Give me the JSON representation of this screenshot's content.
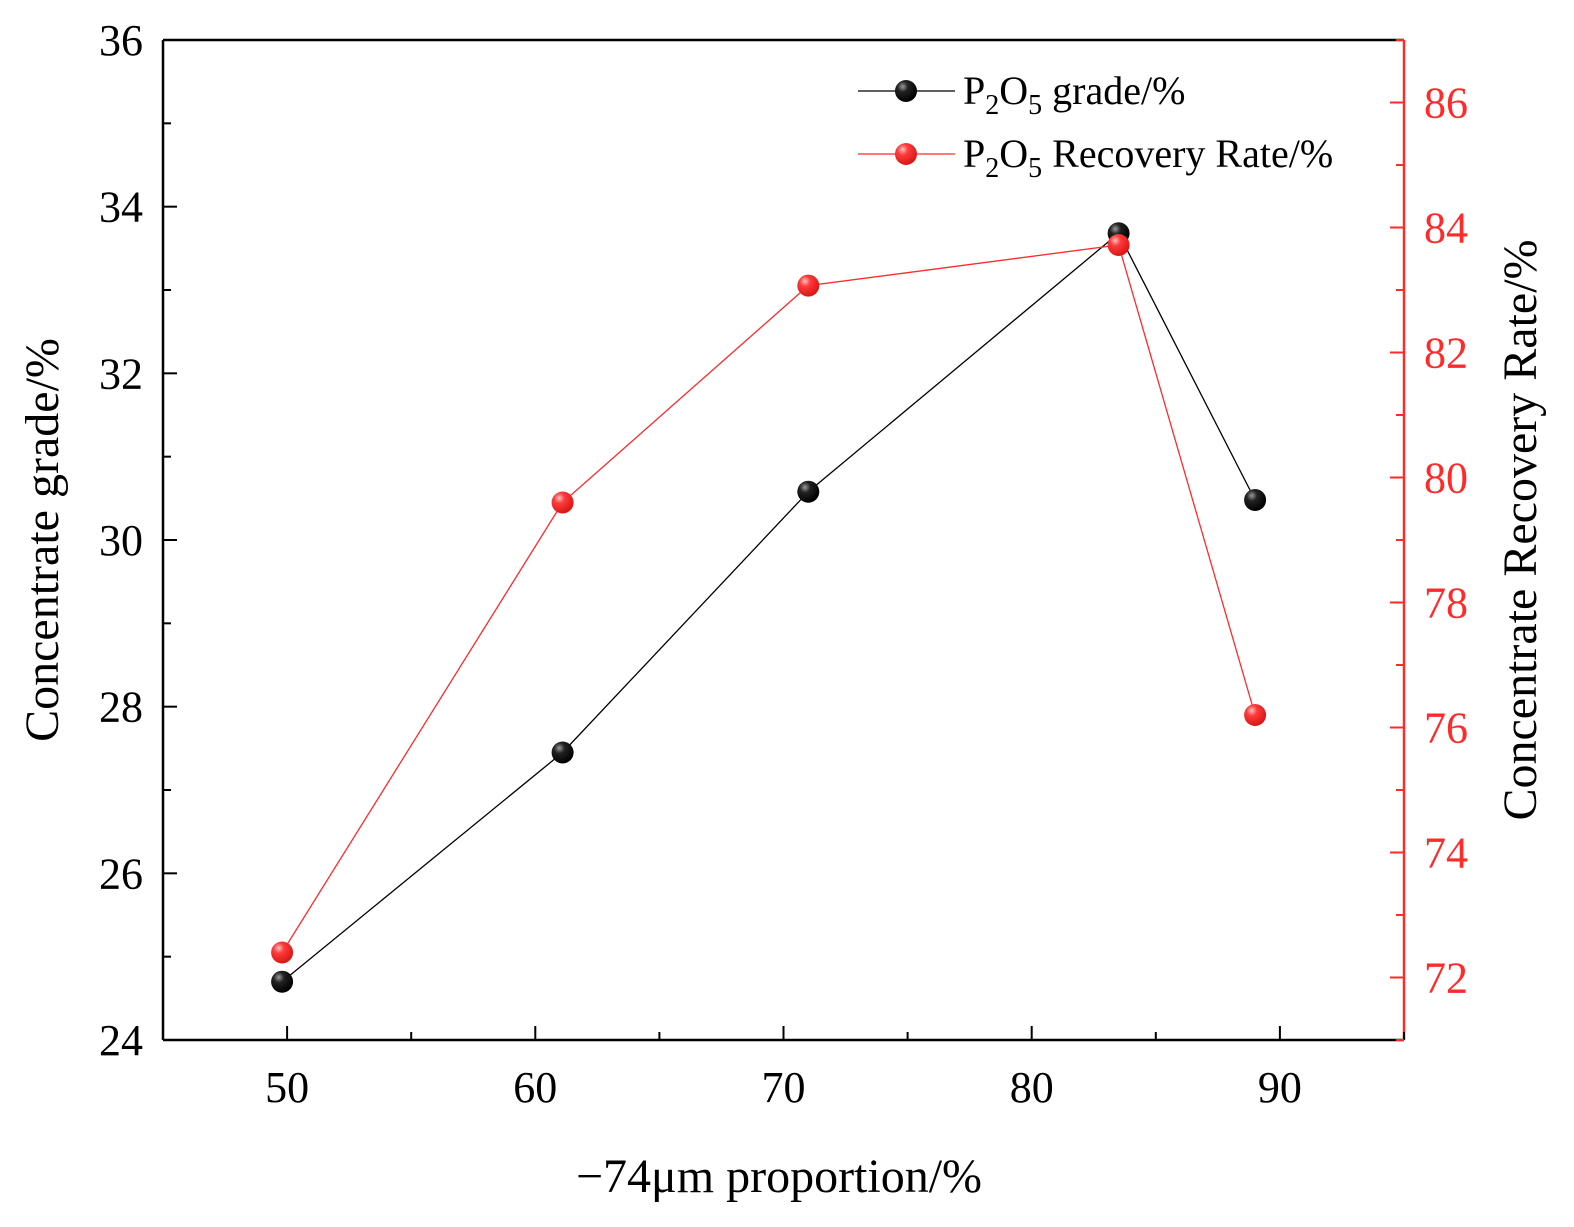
{
  "chart_data": {
    "type": "line",
    "title": "",
    "xlabel": "−74μm proportion/%",
    "ylabel": "Concentrate grade/%",
    "y2label": "Concentrate Recovery Rate/%",
    "xlim": [
      45,
      95
    ],
    "ylim": [
      24,
      36
    ],
    "y2lim": [
      71,
      87
    ],
    "x_ticks": [
      50,
      60,
      70,
      80,
      90
    ],
    "y_ticks": [
      24,
      26,
      28,
      30,
      32,
      34,
      36
    ],
    "y2_ticks": [
      72,
      74,
      76,
      78,
      80,
      82,
      84,
      86
    ],
    "grid": false,
    "legend_position": "top-right",
    "series": [
      {
        "name": "P2O5 grade/%",
        "legend": {
          "p": "P",
          "sub1": "2",
          "o": "O",
          "sub2": "5",
          "rest": " grade/%"
        },
        "axis": "left",
        "color": "#000000",
        "x": [
          49.8,
          61.1,
          71.0,
          83.5,
          89.0
        ],
        "y": [
          24.7,
          27.45,
          30.58,
          33.68,
          30.48
        ]
      },
      {
        "name": "P2O5 Recovery Rate/%",
        "legend": {
          "p": "P",
          "sub1": "2",
          "o": "O",
          "sub2": "5",
          "rest": " Recovery Rate/%"
        },
        "axis": "right",
        "color": "#ff2a2a",
        "x": [
          49.8,
          61.1,
          71.0,
          83.5,
          89.0
        ],
        "y": [
          72.4,
          79.6,
          83.07,
          83.72,
          76.2
        ]
      }
    ]
  }
}
